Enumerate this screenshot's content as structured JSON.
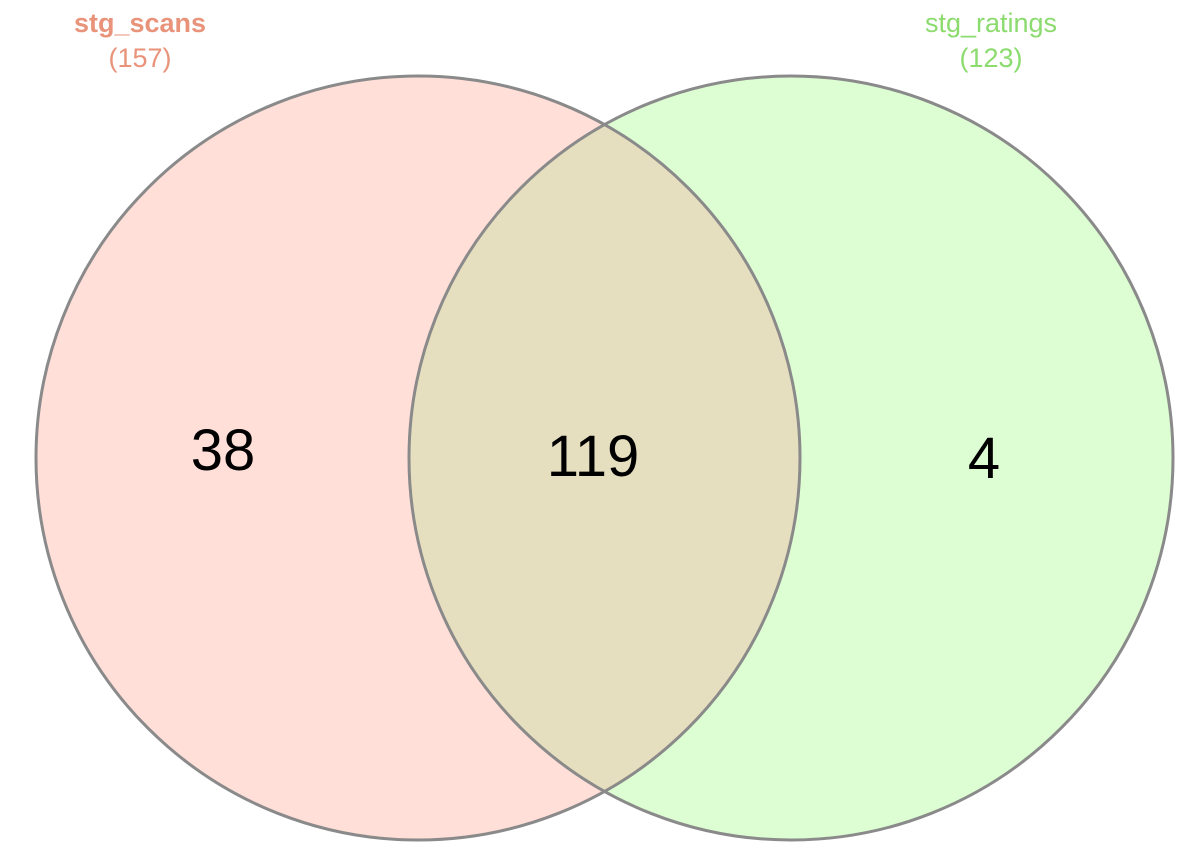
{
  "sets": [
    {
      "name": "stg_scans",
      "total": "(157)",
      "color": "#e8937a",
      "fill": "#ffdfd8"
    },
    {
      "name": "stg_ratings",
      "total": "(123)",
      "color": "#8bdb6e",
      "fill": "#ddfdd3"
    }
  ],
  "regions": {
    "left_only": "38",
    "intersection": "119",
    "right_only": "4"
  },
  "colors": {
    "outline": "#8a8a8a",
    "intersection_fill": "#e6dfbf"
  }
}
